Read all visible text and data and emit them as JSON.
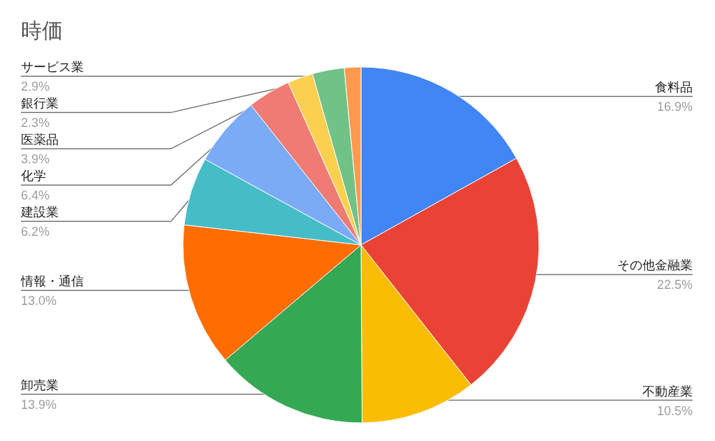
{
  "chart_data": {
    "type": "pie",
    "title": "時価",
    "categories": [
      "食料品",
      "その他金融業",
      "不動産業",
      "卸売業",
      "情報・通信",
      "建設業",
      "化学",
      "医薬品",
      "銀行業",
      "サービス業",
      null
    ],
    "values": [
      16.9,
      22.5,
      10.5,
      13.9,
      13.0,
      6.2,
      6.4,
      3.9,
      2.3,
      2.9,
      1.5
    ],
    "value_labels": [
      "16.9%",
      "22.5%",
      "10.5%",
      "13.9%",
      "13.0%",
      "6.2%",
      "6.4%",
      "3.9%",
      "2.3%",
      "2.9%",
      null
    ],
    "colors": [
      "#4285f4",
      "#ea4335",
      "#fbbc04",
      "#34a853",
      "#ff6d01",
      "#46bdc6",
      "#7baaf7",
      "#f07b72",
      "#fcd04f",
      "#71c287",
      "#ff994d"
    ]
  }
}
